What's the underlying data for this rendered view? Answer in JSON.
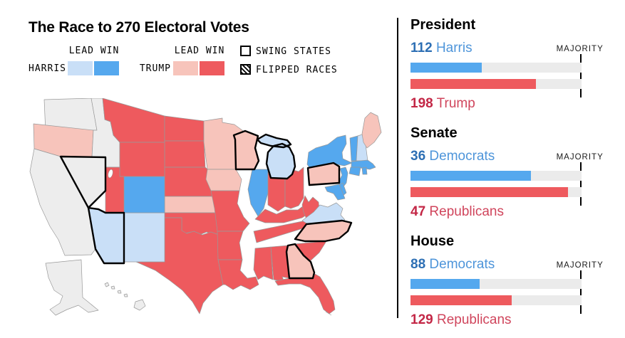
{
  "title": "The Race to 270 Electoral Votes",
  "legend": {
    "lead_win_label": "LEAD WIN",
    "harris_label": "HARRIS",
    "trump_label": "TRUMP",
    "swing_label": "SWING STATES",
    "flipped_label": "FLIPPED RACES",
    "colors": {
      "harris_lead": "#c9dff7",
      "harris_win": "#55a8ee",
      "trump_lead": "#f7c4bb",
      "trump_win": "#ee5a5e",
      "none": "#ededed"
    }
  },
  "panel": {
    "majority_label": "MAJORITY",
    "sections": [
      {
        "title": "President",
        "majority": 270,
        "rows": [
          {
            "value": 112,
            "name": "Harris",
            "party": "dem"
          },
          {
            "value": 198,
            "name": "Trump",
            "party": "rep"
          }
        ]
      },
      {
        "title": "Senate",
        "majority": 51,
        "rows": [
          {
            "value": 36,
            "name": "Democrats",
            "party": "dem"
          },
          {
            "value": 47,
            "name": "Republicans",
            "party": "rep"
          }
        ]
      },
      {
        "title": "House",
        "majority": 218,
        "rows": [
          {
            "value": 88,
            "name": "Democrats",
            "party": "dem"
          },
          {
            "value": 129,
            "name": "Republicans",
            "party": "rep"
          }
        ]
      }
    ]
  },
  "map": {
    "swing_states": [
      "NV",
      "AZ",
      "WI",
      "MI",
      "PA",
      "NC",
      "GA"
    ],
    "results": {
      "WA": "none",
      "OR": "trump_lead",
      "CA": "none",
      "ID": "none",
      "NV": "none",
      "MT": "trump_win",
      "WY": "trump_win",
      "UT": "trump_win",
      "CO": "harris_win",
      "AZ": "harris_lead",
      "NM": "harris_lead",
      "ND": "trump_win",
      "SD": "trump_win",
      "NE": "trump_win",
      "KS": "trump_lead",
      "OK": "trump_win",
      "TX": "trump_win",
      "MN": "trump_lead",
      "IA": "trump_lead",
      "MO": "trump_win",
      "AR": "trump_win",
      "LA": "trump_win",
      "WI": "trump_lead",
      "IL": "harris_win",
      "MI": "harris_lead",
      "IN": "trump_win",
      "OH": "trump_win",
      "KY": "trump_win",
      "TN": "trump_win",
      "MS": "trump_win",
      "AL": "trump_win",
      "GA": "trump_lead",
      "FL": "trump_win",
      "SC": "trump_win",
      "NC": "trump_lead",
      "VA": "harris_lead",
      "WV": "trump_win",
      "PA": "trump_lead",
      "NY": "harris_win",
      "NJ": "harris_win",
      "DE": "harris_win",
      "MD": "harris_win",
      "CT": "harris_win",
      "RI": "harris_win",
      "MA": "harris_win",
      "VT": "harris_win",
      "NH": "harris_lead",
      "ME": "trump_lead",
      "AK": "none",
      "HI": "none"
    }
  },
  "chart_data": [
    {
      "type": "bar",
      "title": "President",
      "categories": [
        "Harris",
        "Trump"
      ],
      "values": [
        112,
        198
      ],
      "majority_line": 270,
      "xlim": [
        0,
        270
      ],
      "series_colors": [
        "#55a8ee",
        "#ee5a5e"
      ]
    },
    {
      "type": "bar",
      "title": "Senate",
      "categories": [
        "Democrats",
        "Republicans"
      ],
      "values": [
        36,
        47
      ],
      "majority_line": 51,
      "xlim": [
        0,
        51
      ],
      "series_colors": [
        "#55a8ee",
        "#ee5a5e"
      ]
    },
    {
      "type": "bar",
      "title": "House",
      "categories": [
        "Democrats",
        "Republicans"
      ],
      "values": [
        88,
        129
      ],
      "majority_line": 218,
      "xlim": [
        0,
        218
      ],
      "series_colors": [
        "#55a8ee",
        "#ee5a5e"
      ]
    },
    {
      "type": "heatmap",
      "title": "The Race to 270 Electoral Votes (state map)",
      "legend_categories": [
        "harris_lead",
        "harris_win",
        "trump_lead",
        "trump_win",
        "none"
      ],
      "harris_win": [
        "CO",
        "IL",
        "NY",
        "NJ",
        "DE",
        "MD",
        "CT",
        "RI",
        "MA",
        "VT"
      ],
      "harris_lead": [
        "AZ",
        "NM",
        "MI",
        "VA",
        "NH"
      ],
      "trump_win": [
        "MT",
        "WY",
        "UT",
        "ND",
        "SD",
        "NE",
        "OK",
        "TX",
        "MO",
        "AR",
        "LA",
        "IN",
        "OH",
        "KY",
        "TN",
        "MS",
        "AL",
        "FL",
        "SC",
        "WV"
      ],
      "trump_lead": [
        "OR",
        "KS",
        "MN",
        "IA",
        "WI",
        "GA",
        "NC",
        "PA",
        "ME"
      ],
      "none": [
        "WA",
        "CA",
        "ID",
        "NV",
        "AK",
        "HI"
      ],
      "swing_states": [
        "NV",
        "AZ",
        "WI",
        "MI",
        "PA",
        "NC",
        "GA"
      ]
    }
  ]
}
